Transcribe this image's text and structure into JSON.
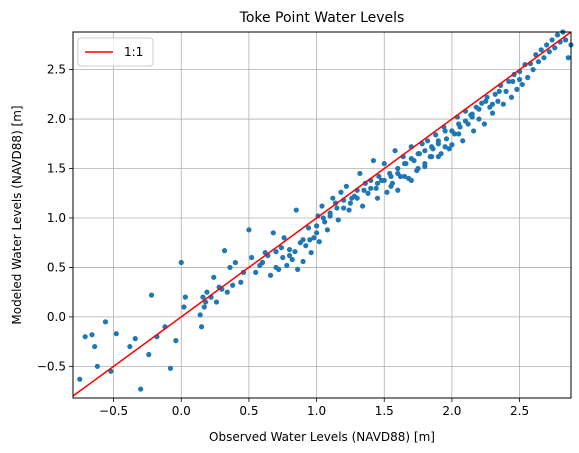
{
  "chart_data": {
    "type": "scatter",
    "title": "Toke Point Water Levels",
    "xlabel": "Observed Water Levels (NAVD88) [m]",
    "ylabel": "Modeled Water Levels (NAVD88) [m]",
    "xlim": [
      -0.8,
      2.88
    ],
    "ylim": [
      -0.82,
      2.88
    ],
    "xticks": [
      -0.5,
      0.0,
      0.5,
      1.0,
      1.5,
      2.0,
      2.5
    ],
    "xtick_labels": [
      "−0.5",
      "0.0",
      "0.5",
      "1.0",
      "1.5",
      "2.0",
      "2.5"
    ],
    "yticks": [
      -0.5,
      0.0,
      0.5,
      1.0,
      1.5,
      2.0,
      2.5
    ],
    "ytick_labels": [
      "−0.5",
      "0.0",
      "0.5",
      "1.0",
      "1.5",
      "2.0",
      "2.5"
    ],
    "grid": true,
    "legend_position": "top-left",
    "reference_line": {
      "label": "1:1",
      "color": "#ff0000",
      "x": [
        -0.8,
        2.88
      ],
      "y": [
        -0.8,
        2.88
      ]
    },
    "series": [
      {
        "color": "#1f77b4",
        "x": [
          -0.81,
          -0.75,
          -0.71,
          -0.66,
          -0.64,
          -0.62,
          -0.56,
          -0.52,
          -0.48,
          -0.38,
          -0.34,
          -0.3,
          -0.24,
          -0.22,
          -0.18,
          -0.12,
          -0.08,
          -0.04,
          0.0,
          0.02,
          0.03,
          0.14,
          0.15,
          0.16,
          0.17,
          0.18,
          0.19,
          0.22,
          0.24,
          0.26,
          0.28,
          0.3,
          0.32,
          0.34,
          0.36,
          0.38,
          0.4,
          0.44,
          0.46,
          0.5,
          0.52,
          0.55,
          0.58,
          0.6,
          0.62,
          0.64,
          0.66,
          0.68,
          0.7,
          0.72,
          0.74,
          0.76,
          0.78,
          0.8,
          0.82,
          0.84,
          0.85,
          0.86,
          0.88,
          0.9,
          0.92,
          0.94,
          0.96,
          0.98,
          1.0,
          1.01,
          1.02,
          1.04,
          1.06,
          1.08,
          1.1,
          1.12,
          1.14,
          1.16,
          1.18,
          1.2,
          1.22,
          1.24,
          1.26,
          1.28,
          1.3,
          1.32,
          1.34,
          1.36,
          1.38,
          1.4,
          1.42,
          1.44,
          1.46,
          1.48,
          1.5,
          1.52,
          1.54,
          1.56,
          1.58,
          1.6,
          1.62,
          1.64,
          1.66,
          1.68,
          1.7,
          1.72,
          1.74,
          1.76,
          1.78,
          1.8,
          1.82,
          1.84,
          1.86,
          1.88,
          1.9,
          1.92,
          1.94,
          1.96,
          1.98,
          2.0,
          2.02,
          2.04,
          2.06,
          2.08,
          2.1,
          2.12,
          2.14,
          2.16,
          2.18,
          2.2,
          2.22,
          2.24,
          2.26,
          2.28,
          2.3,
          2.32,
          2.34,
          2.36,
          2.38,
          2.4,
          2.42,
          2.44,
          2.46,
          2.48,
          2.5,
          2.52,
          2.54,
          2.56,
          2.58,
          2.6,
          2.62,
          2.64,
          2.66,
          2.68,
          2.7,
          2.72,
          2.74,
          2.76,
          2.78,
          2.8,
          2.82,
          2.84,
          2.86,
          2.88,
          0.9,
          1.1,
          1.3,
          1.5,
          1.7,
          1.9,
          2.1,
          2.3,
          2.5,
          1.2,
          1.4,
          1.6,
          1.8,
          2.0,
          2.2,
          0.7,
          0.8,
          1.0,
          1.15,
          1.35,
          1.55,
          1.75,
          1.95,
          2.15,
          2.35,
          2.45,
          1.05,
          1.25,
          1.45,
          1.65,
          1.85,
          2.05,
          2.25,
          0.6,
          0.75,
          0.95,
          1.6,
          1.7,
          1.8,
          1.9,
          2.0,
          1.45,
          1.55,
          1.65,
          1.75,
          1.85,
          1.95,
          2.05,
          2.15
        ],
        "y": [
          -0.45,
          -0.63,
          -0.2,
          -0.18,
          -0.3,
          -0.5,
          -0.05,
          -0.55,
          -0.17,
          -0.3,
          -0.22,
          -0.73,
          -0.38,
          0.22,
          -0.2,
          -0.1,
          -0.52,
          -0.24,
          0.55,
          0.1,
          0.2,
          0.02,
          -0.1,
          0.2,
          0.1,
          0.15,
          0.25,
          0.2,
          0.4,
          0.15,
          0.3,
          0.28,
          0.67,
          0.25,
          0.5,
          0.32,
          0.55,
          0.35,
          0.45,
          0.88,
          0.6,
          0.45,
          0.52,
          0.55,
          0.65,
          0.62,
          0.42,
          0.85,
          0.66,
          0.48,
          0.7,
          0.8,
          0.52,
          0.62,
          0.58,
          0.66,
          1.08,
          0.48,
          0.75,
          0.56,
          0.72,
          0.9,
          0.65,
          0.8,
          0.92,
          1.02,
          0.76,
          1.12,
          0.96,
          0.88,
          1.05,
          1.2,
          1.15,
          0.98,
          1.26,
          1.18,
          1.32,
          1.08,
          1.2,
          1.22,
          1.28,
          1.45,
          1.12,
          1.35,
          1.25,
          1.38,
          1.58,
          1.3,
          1.42,
          1.38,
          1.55,
          1.26,
          1.45,
          1.35,
          1.68,
          1.5,
          1.42,
          1.62,
          1.55,
          1.4,
          1.72,
          1.58,
          1.48,
          1.65,
          1.75,
          1.52,
          1.78,
          1.62,
          1.7,
          1.84,
          1.75,
          1.65,
          1.92,
          1.8,
          1.7,
          1.88,
          1.85,
          2.02,
          1.92,
          1.78,
          2.08,
          1.95,
          2.04,
          1.88,
          2.12,
          2.0,
          2.16,
          1.95,
          2.22,
          2.12,
          2.06,
          2.25,
          2.18,
          2.34,
          2.15,
          2.28,
          2.38,
          2.22,
          2.45,
          2.3,
          2.48,
          2.35,
          2.55,
          2.42,
          2.56,
          2.5,
          2.65,
          2.58,
          2.7,
          2.62,
          2.75,
          2.68,
          2.8,
          2.72,
          2.85,
          2.78,
          2.88,
          2.8,
          2.62,
          2.75,
          0.78,
          1.02,
          1.2,
          1.38,
          1.6,
          1.78,
          1.98,
          2.15,
          2.4,
          1.1,
          1.3,
          1.45,
          1.68,
          1.88,
          2.1,
          0.5,
          0.68,
          0.85,
          1.1,
          1.28,
          1.42,
          1.65,
          1.88,
          2.05,
          2.28,
          2.38,
          1.0,
          1.15,
          1.35,
          1.55,
          1.72,
          1.95,
          2.18,
          0.55,
          0.6,
          0.78,
          1.28,
          1.38,
          1.55,
          1.62,
          1.74,
          1.2,
          1.32,
          1.42,
          1.5,
          1.62,
          1.72,
          1.85,
          2.02
        ]
      }
    ]
  }
}
